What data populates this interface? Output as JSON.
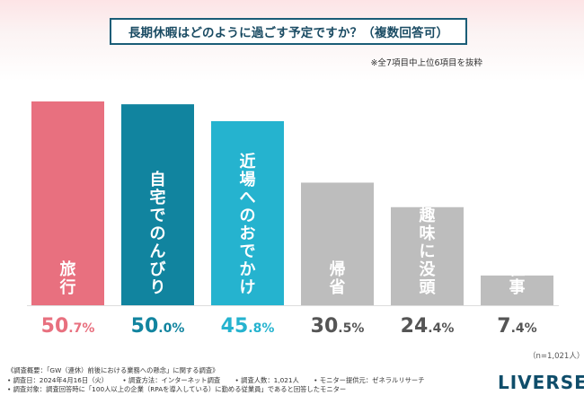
{
  "title": "長期休暇はどのように過ごす予定ですか？（複数回答可）",
  "subtitle": "※全7項目中上位6項目を抜粋",
  "chart_data": {
    "type": "bar",
    "title": "長期休暇はどのように過ごす予定ですか？（複数回答可）",
    "categories": [
      "旅行",
      "自宅でのんびり",
      "近場へのおでかけ",
      "帰省",
      "趣味に没頭",
      "仕事"
    ],
    "values": [
      50.7,
      50.0,
      45.8,
      30.5,
      24.4,
      7.4
    ],
    "value_labels": [
      {
        "int": "50",
        "dec": ".7%"
      },
      {
        "int": "50",
        "dec": ".0%"
      },
      {
        "int": "45",
        "dec": ".8%"
      },
      {
        "int": "30",
        "dec": ".5%"
      },
      {
        "int": "24",
        "dec": ".4%"
      },
      {
        "int": "7",
        "dec": ".4%"
      }
    ],
    "colors": [
      "#e8707f",
      "#11849f",
      "#25b3cf",
      "#bdbdbd",
      "#bdbdbd",
      "#bdbdbd"
    ],
    "value_colors": [
      "#e8707f",
      "#11849f",
      "#25b3cf",
      "#555555",
      "#555555",
      "#555555"
    ],
    "ylim": [
      0,
      50.7
    ],
    "xlabel": "",
    "ylabel": ""
  },
  "n_note": "（n=1,021人）",
  "footer": {
    "line1": "《調査概要：「GW（連休）前後における業務への懸念」に関する調査》",
    "line2": [
      "• 調査日：2024年4月16日（火）",
      "• 調査方法：インターネット調査",
      "• 調査人数：1,021人",
      "• モニター提供元：ゼネラルリサーチ"
    ],
    "line3": "• 調査対象：調査回答時に「100人以上の企業（RPAを導入している）に勤める従業員」であると回答したモニター"
  },
  "brand": "LIVERSE"
}
